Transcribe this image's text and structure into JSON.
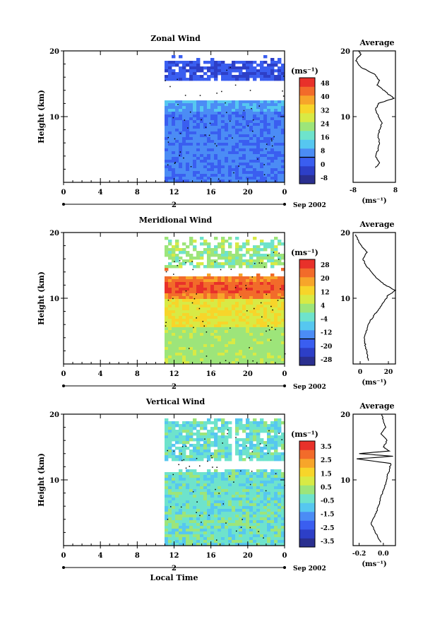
{
  "chart_data": [
    {
      "type": "heatmap",
      "title": "Zonal Wind",
      "ylabel": "Height (km)",
      "ylim": [
        0,
        20
      ],
      "yticks": [
        "20",
        "10"
      ],
      "xticks": [
        "0",
        "4",
        "8",
        "12",
        "16",
        "20",
        "0"
      ],
      "date_day": "2",
      "date_label": "Sep 2002",
      "colorbar": {
        "unit": "(ms⁻¹)",
        "ticks": [
          "48",
          "40",
          "32",
          "24",
          "16",
          "8",
          "0",
          "-8"
        ],
        "colors": [
          "#2a2f8f",
          "#2d3fc7",
          "#3a5ef0",
          "#4b8cf5",
          "#56c7f0",
          "#6ee3cc",
          "#9de57a",
          "#d8ea45",
          "#f7d52a",
          "#f7a52a",
          "#f26b2a",
          "#e8312a"
        ]
      },
      "average": {
        "title": "Average",
        "xticks": [
          "-8",
          "8"
        ],
        "xlim": [
          -8,
          8
        ],
        "unit": "(ms⁻¹)",
        "heights": [
          2.2,
          3,
          4,
          5,
          6,
          7,
          8,
          9,
          10,
          11,
          12,
          12.8,
          13.5,
          14.2,
          14.8,
          15.5,
          16.5,
          17.5,
          18.5,
          19.5,
          20
        ],
        "values": [
          0.5,
          2,
          0.5,
          1.5,
          2,
          1.5,
          2,
          3,
          1.5,
          0.5,
          1.5,
          7.5,
          5,
          3,
          1,
          2,
          0,
          -5,
          -7,
          -5,
          -6
        ]
      }
    },
    {
      "type": "heatmap",
      "title": "Meridional Wind",
      "ylabel": "Height (km)",
      "ylim": [
        0,
        20
      ],
      "yticks": [
        "20",
        "10"
      ],
      "xticks": [
        "0",
        "4",
        "8",
        "12",
        "16",
        "20",
        "0"
      ],
      "date_day": "2",
      "date_label": "Sep 2002",
      "colorbar": {
        "unit": "(ms⁻¹)",
        "ticks": [
          "28",
          "20",
          "12",
          "4",
          "-4",
          "-12",
          "-20",
          "-28"
        ],
        "colors": [
          "#2a2f8f",
          "#2d3fc7",
          "#3a5ef0",
          "#4b8cf5",
          "#56c7f0",
          "#6ee3cc",
          "#9de57a",
          "#d8ea45",
          "#f7d52a",
          "#f7a52a",
          "#f26b2a",
          "#e8312a"
        ]
      },
      "average": {
        "title": "Average",
        "xticks": [
          "0",
          "20"
        ],
        "xlim": [
          -5,
          25
        ],
        "unit": "(ms⁻¹)",
        "heights": [
          0.5,
          1.5,
          2.5,
          3.5,
          4.5,
          5.5,
          6.5,
          7.5,
          8.5,
          9.5,
          10.5,
          11.2,
          12,
          13,
          14,
          15,
          16,
          17,
          18,
          19,
          19.7
        ],
        "values": [
          6,
          5,
          4,
          3,
          3.5,
          5,
          7,
          10,
          14,
          17,
          20,
          25,
          18,
          12,
          8,
          4,
          2,
          5,
          1,
          -2,
          -3
        ]
      }
    },
    {
      "type": "heatmap",
      "title": "Vertical Wind",
      "ylabel": "Height (km)",
      "ylim": [
        0,
        20
      ],
      "yticks": [
        "20",
        "10"
      ],
      "xticks": [
        "0",
        "4",
        "8",
        "12",
        "16",
        "20",
        "0"
      ],
      "date_day": "2",
      "date_label": "Sep 2002",
      "xlabel": "Local Time",
      "colorbar": {
        "unit": "(ms⁻¹)",
        "ticks": [
          "3.5",
          "2.5",
          "1.5",
          "0.5",
          "-0.5",
          "-1.5",
          "-2.5",
          "-3.5"
        ],
        "colors": [
          "#2a2f8f",
          "#2d3fc7",
          "#3a5ef0",
          "#4b8cf5",
          "#56c7f0",
          "#6ee3cc",
          "#9de57a",
          "#d8ea45",
          "#f7d52a",
          "#f7a52a",
          "#f26b2a",
          "#e8312a"
        ]
      },
      "average": {
        "title": "Average",
        "xticks": [
          "-0.2",
          "0.0"
        ],
        "xlim": [
          -0.25,
          0.1
        ],
        "unit": "(ms⁻¹)",
        "heights": [
          0.5,
          1.5,
          2.5,
          3.5,
          4.5,
          5.5,
          6.5,
          7.5,
          8.5,
          9.5,
          10.5,
          11.5,
          12.5,
          13.2,
          13.6,
          14,
          14.4,
          15,
          16,
          17,
          18,
          19,
          20
        ],
        "values": [
          -0.02,
          -0.05,
          -0.08,
          -0.1,
          -0.07,
          -0.05,
          -0.03,
          -0.02,
          0.0,
          0.02,
          0.03,
          0.05,
          0.06,
          -0.22,
          0.08,
          -0.2,
          0.05,
          0.0,
          0.03,
          -0.02,
          0.02,
          0.0,
          -0.01
        ]
      }
    }
  ]
}
